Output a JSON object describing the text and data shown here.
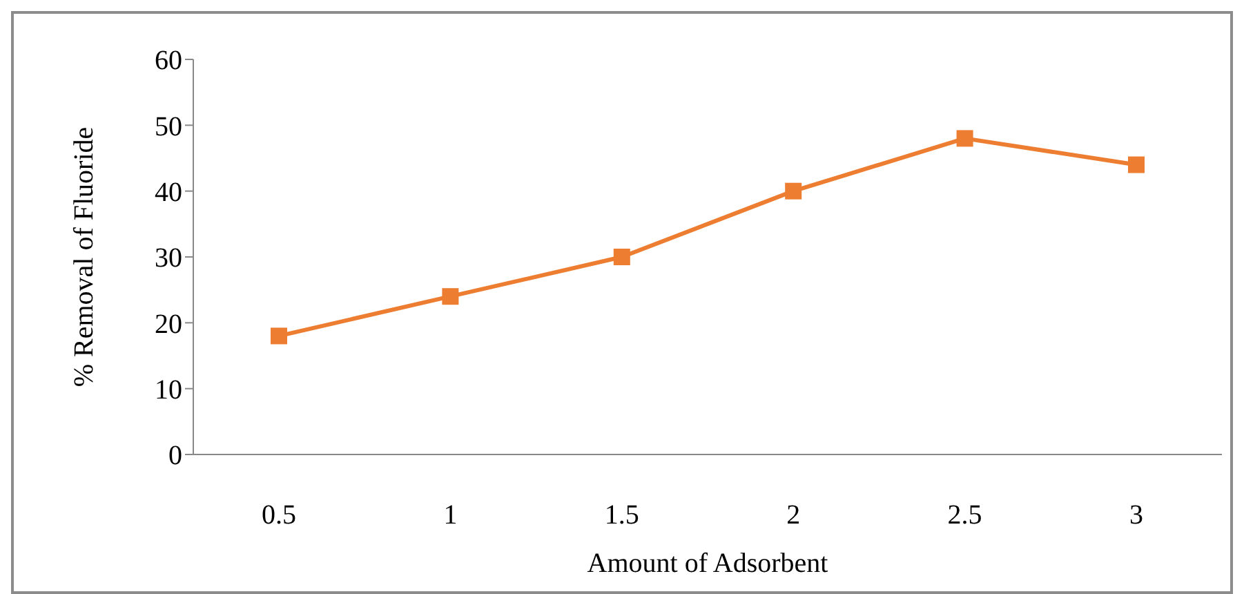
{
  "chart_data": {
    "type": "line",
    "xlabel": "Amount of Adsorbent",
    "ylabel": "% Removal of Fluoride",
    "categories": [
      "0.5",
      "1",
      "1.5",
      "2",
      "2.5",
      "3"
    ],
    "series": [
      {
        "color": "#ed7d31",
        "values": [
          18,
          24,
          30,
          40,
          48,
          44
        ]
      }
    ],
    "ylim": [
      0,
      60
    ],
    "yticks": [
      0,
      10,
      20,
      30,
      40,
      50,
      60
    ],
    "grid": false,
    "legend": false,
    "marker": "square",
    "line_style": "solid"
  }
}
